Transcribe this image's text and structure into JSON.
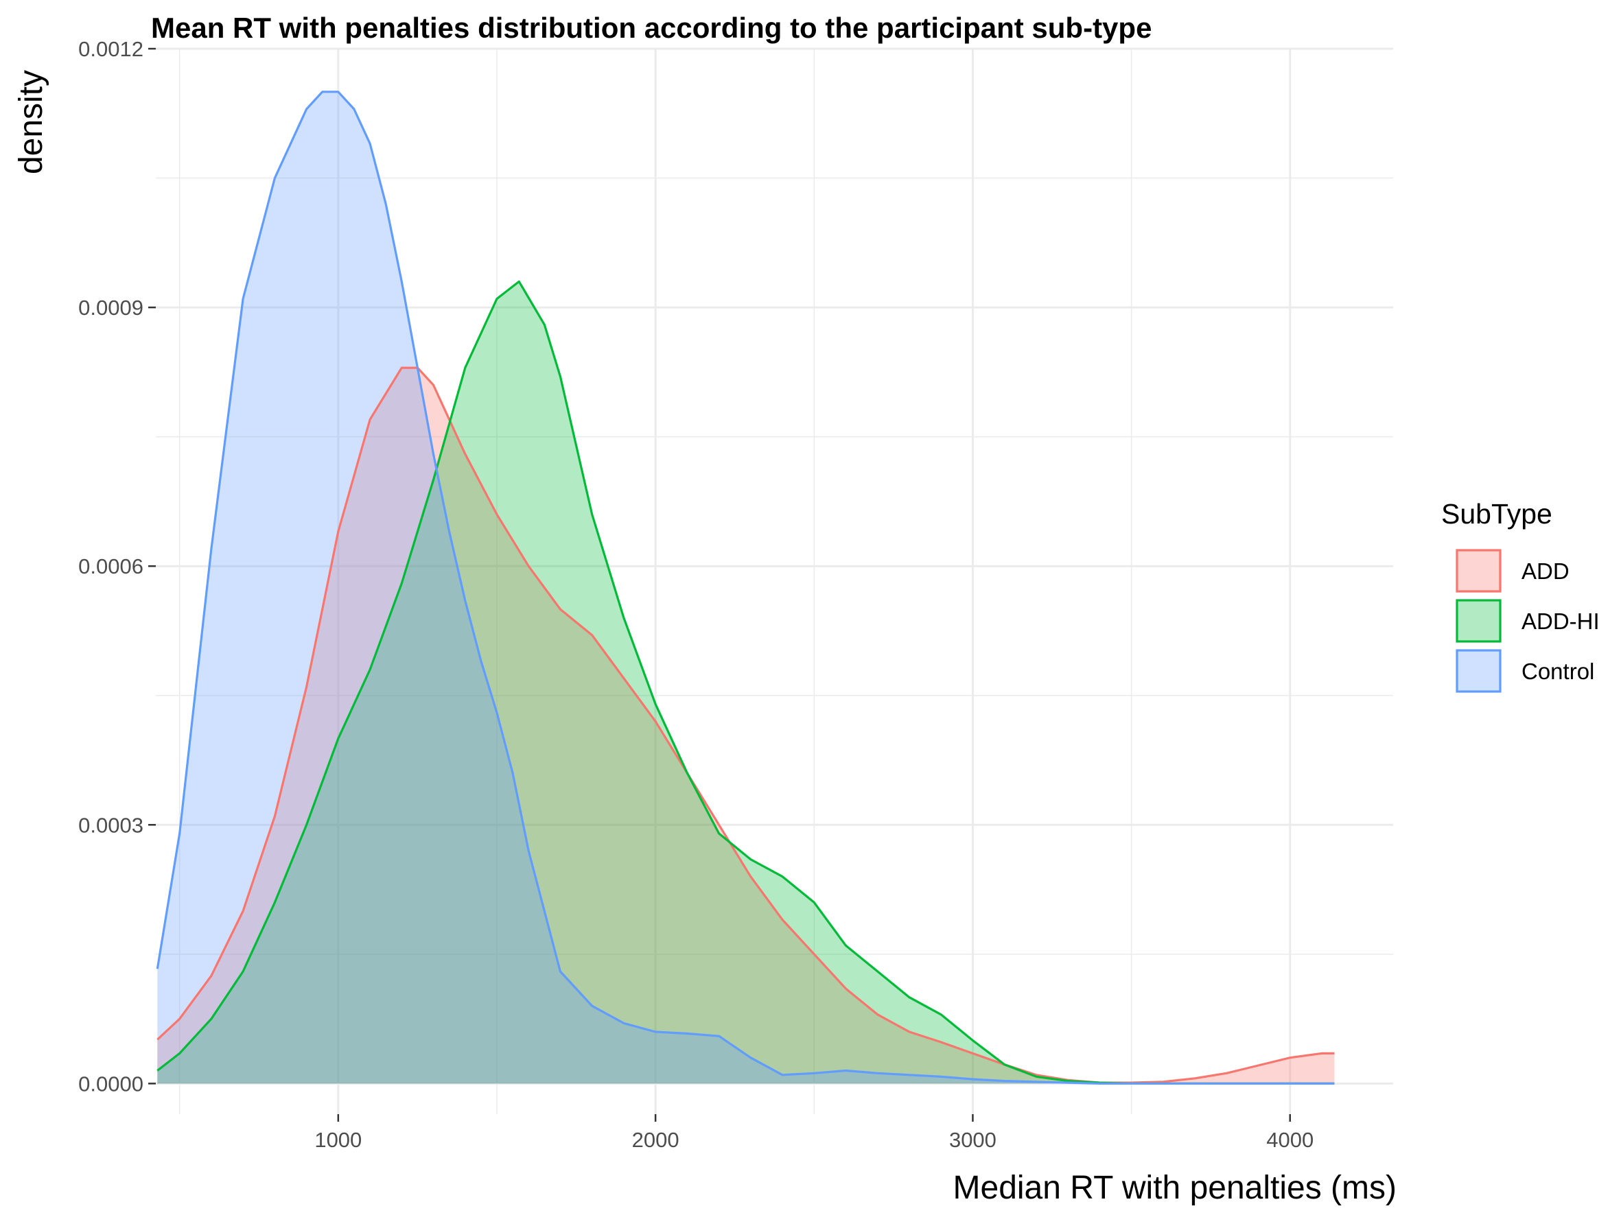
{
  "chart_data": {
    "type": "area",
    "title": "Mean RT with penalties distribution according to the participant sub-type",
    "xlabel": "Median RT with penalties (ms)",
    "ylabel": "density",
    "xlim": [
      425,
      4325
    ],
    "ylim": [
      -3.55e-05,
      0.0012
    ],
    "x_ticks": [
      1000,
      2000,
      3000,
      4000
    ],
    "x_tick_labels": [
      "1000",
      "2000",
      "3000",
      "4000"
    ],
    "y_ticks": [
      0,
      0.0003,
      0.0006,
      0.0009,
      0.0012
    ],
    "y_tick_labels": [
      "0.0000",
      "0.0003",
      "0.0006",
      "0.0009",
      "0.0012"
    ],
    "grid": true,
    "legend": {
      "title": "SubType",
      "position": "right",
      "entries": [
        "ADD",
        "ADD-HI",
        "Control"
      ]
    },
    "series": [
      {
        "name": "ADD",
        "color": "#F8766D",
        "fill": "#F8766D",
        "x": [
          430,
          500,
          600,
          700,
          800,
          900,
          1000,
          1100,
          1200,
          1250,
          1300,
          1400,
          1500,
          1600,
          1700,
          1800,
          1900,
          2000,
          2100,
          2200,
          2300,
          2400,
          2500,
          2600,
          2700,
          2800,
          2900,
          3000,
          3100,
          3200,
          3300,
          3400,
          3500,
          3600,
          3700,
          3800,
          3900,
          4000,
          4100,
          4140
        ],
        "y": [
          5.1e-05,
          7.5e-05,
          0.000125,
          0.0002,
          0.00031,
          0.00046,
          0.00064,
          0.00077,
          0.00083,
          0.00083,
          0.00081,
          0.00073,
          0.00066,
          0.0006,
          0.00055,
          0.00052,
          0.00047,
          0.00042,
          0.00036,
          0.0003,
          0.00024,
          0.00019,
          0.00015,
          0.00011,
          8e-05,
          6e-05,
          4.8e-05,
          3.5e-05,
          2.2e-05,
          1e-05,
          4e-06,
          1e-06,
          1e-06,
          2e-06,
          6e-06,
          1.2e-05,
          2.1e-05,
          3e-05,
          3.5e-05,
          3.5e-05
        ]
      },
      {
        "name": "ADD-HI",
        "color": "#00BA38",
        "fill": "#00BA38",
        "x": [
          430,
          500,
          600,
          700,
          800,
          900,
          1000,
          1100,
          1200,
          1300,
          1400,
          1500,
          1570,
          1650,
          1700,
          1800,
          1900,
          2000,
          2100,
          2200,
          2300,
          2400,
          2500,
          2600,
          2700,
          2800,
          2900,
          3000,
          3100,
          3200,
          3300,
          3400,
          3500,
          3600,
          3700,
          3800,
          3900,
          4000,
          4100,
          4140
        ],
        "y": [
          1.5e-05,
          3.5e-05,
          7.5e-05,
          0.00013,
          0.00021,
          0.0003,
          0.0004,
          0.00048,
          0.00058,
          0.0007,
          0.00083,
          0.00091,
          0.00093,
          0.00088,
          0.00082,
          0.00066,
          0.00054,
          0.00044,
          0.00036,
          0.00029,
          0.00026,
          0.00024,
          0.00021,
          0.00016,
          0.00013,
          0.0001,
          8e-05,
          5e-05,
          2.2e-05,
          8e-06,
          3e-06,
          1e-06,
          0,
          0,
          0,
          0,
          0,
          0,
          0,
          0
        ]
      },
      {
        "name": "Control",
        "color": "#619CFF",
        "fill": "#619CFF",
        "x": [
          430,
          500,
          600,
          700,
          800,
          850,
          900,
          950,
          1000,
          1050,
          1100,
          1150,
          1200,
          1250,
          1300,
          1350,
          1400,
          1450,
          1500,
          1550,
          1600,
          1700,
          1800,
          1900,
          2000,
          2100,
          2200,
          2300,
          2400,
          2500,
          2600,
          2700,
          2800,
          2900,
          3000,
          3100,
          3200,
          3300,
          3400,
          3600,
          3800,
          4000,
          4140
        ],
        "y": [
          0.000133,
          0.00029,
          0.00062,
          0.00091,
          0.00105,
          0.00109,
          0.00113,
          0.00115,
          0.00115,
          0.00113,
          0.00109,
          0.00102,
          0.00093,
          0.00083,
          0.00073,
          0.00064,
          0.00056,
          0.00049,
          0.00043,
          0.00036,
          0.00027,
          0.00013,
          9e-05,
          7e-05,
          6e-05,
          5.8e-05,
          5.5e-05,
          3e-05,
          1e-05,
          1.2e-05,
          1.5e-05,
          1.2e-05,
          1e-05,
          8e-06,
          5e-06,
          3e-06,
          2e-06,
          1e-06,
          0,
          0,
          0,
          0,
          0
        ]
      }
    ]
  }
}
